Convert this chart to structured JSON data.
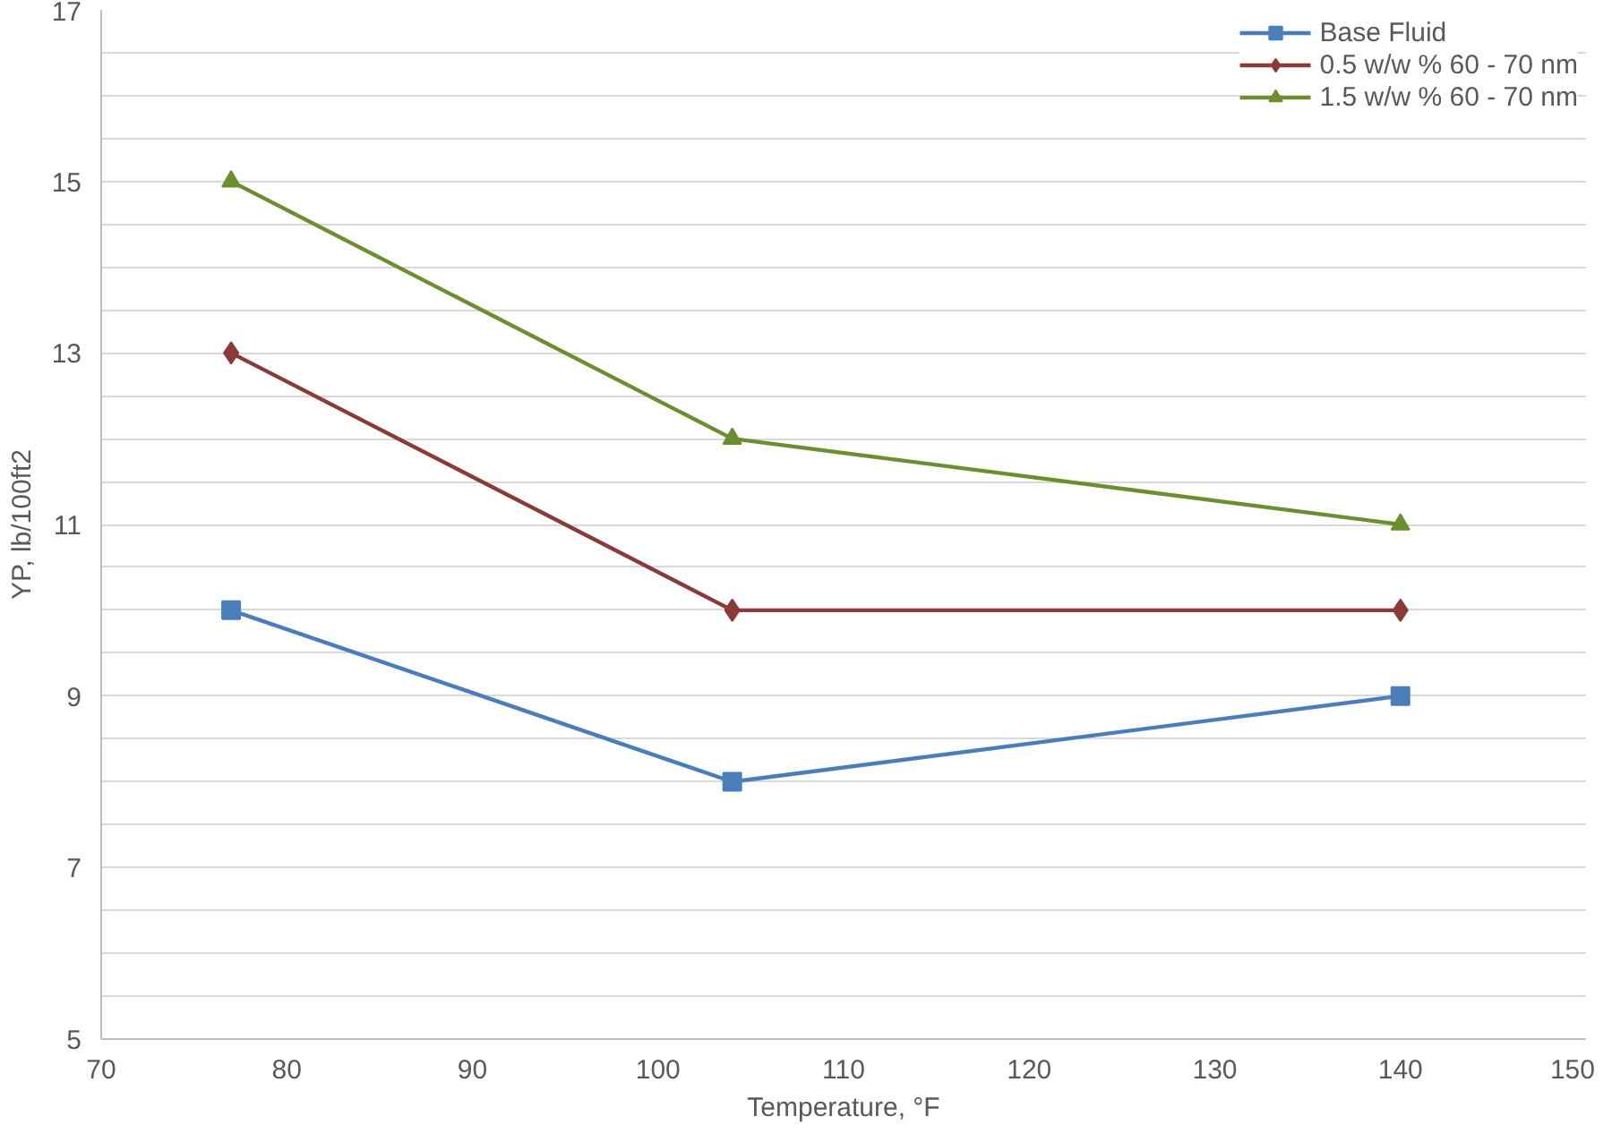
{
  "chart_data": {
    "type": "line",
    "xlabel": "Temperature, °F",
    "ylabel": "YP, lb/100ft2",
    "x": [
      77,
      104,
      140
    ],
    "series": [
      {
        "name": "Base Fluid",
        "color": "#4a7ebb",
        "values": [
          10,
          8,
          9
        ],
        "marker": "square"
      },
      {
        "name": "0.5 w/w % 60 - 70 nm",
        "color": "#8b3a3a",
        "values": [
          13,
          10,
          10
        ],
        "marker": "diamond"
      },
      {
        "name": "1.5 w/w % 60 - 70 nm",
        "color": "#6b8e2e",
        "values": [
          15,
          12,
          11
        ],
        "marker": "triangle"
      }
    ],
    "xlim": [
      70,
      150
    ],
    "xticks": [
      70,
      80,
      90,
      100,
      110,
      120,
      130,
      140,
      150
    ],
    "ylim": [
      5,
      17
    ],
    "yticks": [
      5,
      {
        "value": 5.5,
        "label": null
      },
      {
        "value": 6,
        "label": null
      },
      {
        "value": 6.5,
        "label": null
      },
      7,
      {
        "value": 7.5,
        "label": null
      },
      {
        "value": 8,
        "label": null
      },
      {
        "value": 8.5,
        "label": null
      },
      9,
      {
        "value": 9.5,
        "label": null
      },
      {
        "value": 10,
        "label": null
      },
      {
        "value": 10.5,
        "label": null
      },
      11,
      {
        "value": 11.5,
        "label": null
      },
      {
        "value": 12,
        "label": null
      },
      {
        "value": 12.5,
        "label": null
      },
      13,
      {
        "value": 13.5,
        "label": null
      },
      {
        "value": 14,
        "label": null
      },
      {
        "value": 14.5,
        "label": null
      },
      15,
      {
        "value": 15.5,
        "label": null
      },
      {
        "value": 16,
        "label": null
      },
      {
        "value": 16.5,
        "label": null
      },
      17
    ],
    "grid": "y",
    "legend": "top right",
    "line_style": "solid"
  }
}
